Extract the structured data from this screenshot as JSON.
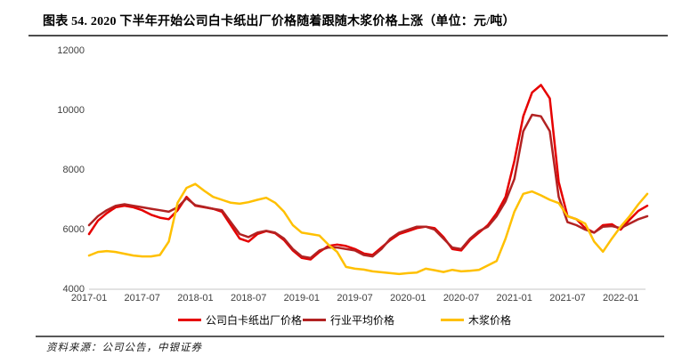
{
  "header": {
    "title": "图表 54. 2020 下半年开始公司白卡纸出厂价格随着跟随木浆价格上涨（单位：元/吨）"
  },
  "footer": {
    "source": "资料来源：公司公告，中银证券"
  },
  "chart_data": {
    "type": "line",
    "title": "图表 54. 2020 下半年开始公司白卡纸出厂价格随着跟随木浆价格上涨",
    "unit": "元/吨",
    "ylim": [
      4000,
      12000
    ],
    "y_ticks": [
      12000,
      10000,
      8000,
      6000,
      4000
    ],
    "x_tick_labels": [
      "2017-01",
      "2017-07",
      "2018-01",
      "2018-07",
      "2019-01",
      "2019-07",
      "2020-01",
      "2020-07",
      "2021-01",
      "2021-07",
      "2022-01"
    ],
    "grid": false,
    "legend_position": "bottom",
    "axis_color": "#d9d9d9",
    "months": [
      "2017-01",
      "2017-02",
      "2017-03",
      "2017-04",
      "2017-05",
      "2017-06",
      "2017-07",
      "2017-08",
      "2017-09",
      "2017-10",
      "2017-11",
      "2017-12",
      "2018-01",
      "2018-02",
      "2018-03",
      "2018-04",
      "2018-05",
      "2018-06",
      "2018-07",
      "2018-08",
      "2018-09",
      "2018-10",
      "2018-11",
      "2018-12",
      "2019-01",
      "2019-02",
      "2019-03",
      "2019-04",
      "2019-05",
      "2019-06",
      "2019-07",
      "2019-08",
      "2019-09",
      "2019-10",
      "2019-11",
      "2019-12",
      "2020-01",
      "2020-02",
      "2020-03",
      "2020-04",
      "2020-05",
      "2020-06",
      "2020-07",
      "2020-08",
      "2020-09",
      "2020-10",
      "2020-11",
      "2020-12",
      "2021-01",
      "2021-02",
      "2021-03",
      "2021-04",
      "2021-05",
      "2021-06",
      "2021-07",
      "2021-08",
      "2021-09",
      "2021-10",
      "2021-11",
      "2021-12",
      "2022-01",
      "2022-02",
      "2022-03",
      "2022-04"
    ],
    "series": [
      {
        "name": "公司白卡纸出厂价格",
        "color": "#e60000",
        "values": [
          5850,
          6300,
          6550,
          6750,
          6800,
          6750,
          6650,
          6500,
          6400,
          6350,
          6650,
          7100,
          6800,
          6750,
          6700,
          6600,
          6150,
          5700,
          5600,
          5850,
          5950,
          5880,
          5650,
          5300,
          5050,
          5000,
          5250,
          5450,
          5500,
          5450,
          5350,
          5200,
          5150,
          5400,
          5650,
          5850,
          5950,
          6050,
          6100,
          6050,
          5750,
          5350,
          5300,
          5650,
          5900,
          6150,
          6550,
          7100,
          8300,
          9800,
          10600,
          10850,
          10400,
          7600,
          6450,
          6350,
          6050,
          5900,
          6150,
          6180,
          6000,
          6330,
          6630,
          6800
        ]
      },
      {
        "name": "行业平均价格",
        "color": "#b22222",
        "values": [
          6150,
          6450,
          6650,
          6800,
          6850,
          6800,
          6750,
          6700,
          6650,
          6600,
          6750,
          7050,
          6820,
          6760,
          6700,
          6650,
          6250,
          5850,
          5750,
          5900,
          5960,
          5900,
          5700,
          5350,
          5100,
          5050,
          5300,
          5400,
          5400,
          5350,
          5300,
          5150,
          5100,
          5350,
          5700,
          5900,
          6000,
          6100,
          6100,
          6000,
          5700,
          5400,
          5350,
          5700,
          5950,
          6100,
          6450,
          6950,
          7700,
          9300,
          9850,
          9800,
          9300,
          7100,
          6250,
          6150,
          6000,
          5900,
          6100,
          6120,
          6050,
          6200,
          6350,
          6450
        ]
      },
      {
        "name": "木浆价格",
        "color": "#ffc000",
        "values": [
          5130,
          5250,
          5280,
          5250,
          5190,
          5130,
          5100,
          5100,
          5150,
          5600,
          6900,
          7400,
          7530,
          7300,
          7100,
          7000,
          6900,
          6870,
          6920,
          7000,
          7070,
          6900,
          6600,
          6150,
          5900,
          5850,
          5800,
          5500,
          5250,
          4750,
          4690,
          4660,
          4600,
          4570,
          4540,
          4510,
          4540,
          4560,
          4690,
          4640,
          4580,
          4650,
          4600,
          4620,
          4650,
          4800,
          4950,
          5700,
          6600,
          7200,
          7280,
          7150,
          7000,
          6890,
          6450,
          6350,
          6200,
          5600,
          5260,
          5700,
          6100,
          6450,
          6850,
          7200
        ]
      }
    ]
  }
}
